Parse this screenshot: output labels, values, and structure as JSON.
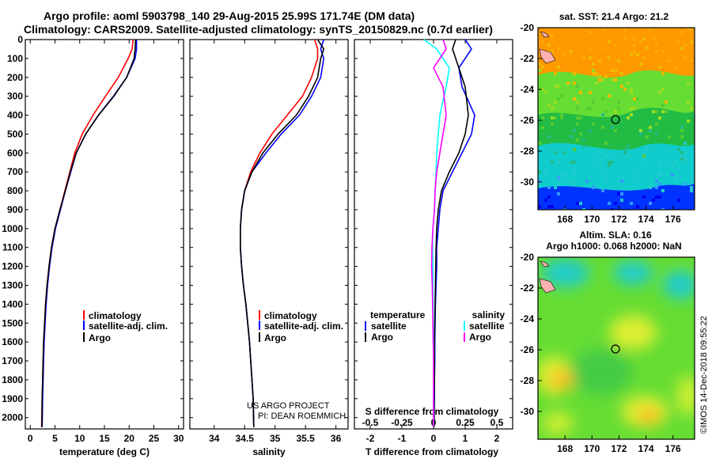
{
  "header": {
    "line1": "Argo profile: aoml 5903798_140 29-Aug-2015 25.99S 171.74E (DM data)",
    "line2": "Climatology: CARS2009. Satellite-adjusted climatology: synTS_20150829.nc (0.7d earlier)"
  },
  "credits": {
    "project": "US ARGO PROJECT",
    "pi": "PI: DEAN ROEMMICH",
    "imos": "©IMOS 14-Dec-2018 09:55:22"
  },
  "colors": {
    "climatology": "#ff0000",
    "satellite": "#0000ff",
    "argo": "#000000",
    "sat_salinity": "#00ffff",
    "argo_salinity": "#ff00ff",
    "land": "#ffb0b0"
  },
  "chart_data": [
    {
      "type": "line",
      "id": "temperature",
      "xlabel": "temperature (deg C)",
      "xlim": [
        -1,
        31
      ],
      "ylim": [
        2060,
        0
      ],
      "xticks": [
        0,
        5,
        10,
        15,
        20,
        25,
        30
      ],
      "yticks": [
        0,
        100,
        200,
        300,
        400,
        500,
        600,
        700,
        800,
        900,
        1000,
        1100,
        1200,
        1300,
        1400,
        1500,
        1600,
        1700,
        1800,
        1900,
        2000
      ],
      "legend": [
        "climatology",
        "satellite-adj. clim.",
        "Argo"
      ],
      "series": [
        {
          "name": "climatology",
          "color": "#ff0000",
          "x": [
            20.8,
            20.6,
            19.8,
            17.8,
            15.2,
            12.7,
            10.5,
            9.0,
            8.0,
            7.0,
            6.0,
            5.0,
            4.3,
            3.8,
            3.4,
            3.1,
            2.9,
            2.7,
            2.6,
            2.5,
            2.4,
            2.3
          ],
          "y": [
            0,
            50,
            100,
            200,
            300,
            400,
            500,
            600,
            700,
            800,
            900,
            1000,
            1100,
            1200,
            1300,
            1400,
            1500,
            1600,
            1700,
            1800,
            1900,
            2050
          ]
        },
        {
          "name": "satellite-adj. clim.",
          "color": "#0000ff",
          "x": [
            21.5,
            21.5,
            21.2,
            19.5,
            16.8,
            13.8,
            11.2,
            9.3,
            8.2,
            7.1,
            6.1,
            5.1,
            4.4,
            3.9,
            3.5,
            3.2,
            3.0,
            2.8,
            2.7,
            2.6,
            2.5,
            2.4
          ],
          "y": [
            0,
            50,
            100,
            200,
            300,
            400,
            500,
            600,
            700,
            800,
            900,
            1000,
            1100,
            1200,
            1300,
            1400,
            1500,
            1600,
            1700,
            1800,
            1900,
            2050
          ]
        },
        {
          "name": "Argo",
          "color": "#000000",
          "x": [
            21.3,
            21.2,
            21.0,
            19.5,
            16.9,
            13.8,
            11.2,
            9.3,
            8.1,
            7.1,
            6.0,
            5.0,
            4.3,
            3.8,
            3.4,
            3.1,
            2.9,
            2.7,
            2.6,
            2.5,
            2.4,
            2.35
          ],
          "y": [
            0,
            50,
            100,
            200,
            300,
            400,
            500,
            600,
            700,
            800,
            900,
            1000,
            1100,
            1200,
            1300,
            1400,
            1500,
            1600,
            1700,
            1800,
            1900,
            2050
          ]
        }
      ]
    },
    {
      "type": "line",
      "id": "salinity",
      "xlabel": "salinity",
      "xlim": [
        33.6,
        36.2
      ],
      "ylim": [
        2060,
        0
      ],
      "xticks": [
        34,
        34.5,
        35,
        35.5,
        36
      ],
      "legend": [
        "climatology",
        "satellite-adj. clim.",
        "Argo"
      ],
      "series": [
        {
          "name": "climatology",
          "color": "#ff0000",
          "x": [
            35.65,
            35.7,
            35.7,
            35.6,
            35.45,
            35.2,
            34.95,
            34.75,
            34.6,
            34.5,
            34.45,
            34.43,
            34.43,
            34.45,
            34.48,
            34.52,
            34.55,
            34.58,
            34.6,
            34.62,
            34.64,
            34.65
          ],
          "y": [
            0,
            50,
            100,
            200,
            300,
            400,
            500,
            600,
            700,
            800,
            900,
            1000,
            1100,
            1200,
            1300,
            1400,
            1500,
            1600,
            1700,
            1800,
            1900,
            2050
          ]
        },
        {
          "name": "satellite-adj. clim.",
          "color": "#0000ff",
          "x": [
            35.8,
            35.75,
            35.8,
            35.75,
            35.6,
            35.4,
            35.1,
            34.85,
            34.62,
            34.5,
            34.45,
            34.43,
            34.43,
            34.45,
            34.48,
            34.52,
            34.55,
            34.58,
            34.6,
            34.62,
            34.64,
            34.65
          ],
          "y": [
            0,
            50,
            100,
            200,
            300,
            400,
            500,
            600,
            700,
            800,
            900,
            1000,
            1100,
            1200,
            1300,
            1400,
            1500,
            1600,
            1700,
            1800,
            1900,
            2050
          ]
        },
        {
          "name": "Argo",
          "color": "#000000",
          "x": [
            35.7,
            35.8,
            35.75,
            35.7,
            35.55,
            35.35,
            35.05,
            34.8,
            34.62,
            34.5,
            34.45,
            34.43,
            34.43,
            34.45,
            34.48,
            34.52,
            34.55,
            34.58,
            34.6,
            34.62,
            34.64,
            34.65
          ],
          "y": [
            0,
            50,
            100,
            200,
            300,
            400,
            500,
            600,
            700,
            800,
            900,
            1000,
            1100,
            1200,
            1300,
            1400,
            1500,
            1600,
            1700,
            1800,
            1900,
            2050
          ]
        }
      ]
    },
    {
      "type": "line",
      "id": "difference",
      "xlabel": "T difference from climatology",
      "xlabel2": "S difference from climatology",
      "xlim": [
        -2.5,
        2.5
      ],
      "ylim": [
        2060,
        0
      ],
      "xticks": [
        -2,
        -1,
        0,
        1,
        2
      ],
      "xticks2": [
        "-0.5",
        "-0.25",
        "0",
        "0.25",
        "0.5"
      ],
      "legend_left_title": "temperature",
      "legend_right_title": "salinity",
      "legend_left": [
        "satellite",
        "Argo"
      ],
      "legend_right": [
        "satellite",
        "Argo"
      ],
      "series": [
        {
          "name": "T satellite",
          "color": "#0000ff",
          "x": [
            1.0,
            1.2,
            0.8,
            0.9,
            1.3,
            1.2,
            0.9,
            0.6,
            0.3,
            0.2,
            0.15,
            0.1,
            0.1,
            0.08,
            0.06,
            0.05,
            0.04,
            0.04,
            0.03,
            0.03,
            0.02,
            0.02
          ],
          "y": [
            0,
            50,
            150,
            250,
            400,
            500,
            600,
            700,
            800,
            900,
            1000,
            1100,
            1200,
            1300,
            1400,
            1500,
            1600,
            1700,
            1800,
            1900,
            2000,
            2050
          ]
        },
        {
          "name": "T Argo",
          "color": "#000000",
          "x": [
            0.7,
            0.6,
            0.8,
            1.0,
            1.1,
            1.0,
            0.8,
            0.5,
            0.25,
            0.15,
            0.1,
            0.08,
            0.07,
            0.06,
            0.05,
            0.04,
            0.03,
            0.03,
            0.03,
            0.02,
            0.02,
            0.02
          ],
          "y": [
            0,
            50,
            150,
            250,
            400,
            500,
            600,
            700,
            800,
            900,
            1000,
            1100,
            1200,
            1300,
            1400,
            1500,
            1600,
            1700,
            1800,
            1900,
            2000,
            2050
          ]
        },
        {
          "name": "S satellite",
          "color": "#00ffff",
          "x": [
            -0.3,
            0.1,
            0.5,
            0.4,
            0.2,
            0.15,
            0.1,
            0.08,
            0.05,
            0.03,
            -0.02,
            -0.03,
            -0.02,
            -0.02,
            -0.01,
            -0.01,
            0.0,
            0.0,
            0.0,
            0.0,
            0.0,
            0.0
          ],
          "y": [
            0,
            50,
            150,
            250,
            400,
            500,
            600,
            700,
            800,
            900,
            1000,
            1100,
            1200,
            1300,
            1400,
            1500,
            1600,
            1700,
            1800,
            1900,
            2000,
            2050
          ]
        },
        {
          "name": "S Argo",
          "color": "#ff00ff",
          "x": [
            0.3,
            0.4,
            0.0,
            0.3,
            0.4,
            0.3,
            0.2,
            0.1,
            0.05,
            0.03,
            -0.02,
            -0.05,
            -0.06,
            -0.04,
            -0.03,
            -0.02,
            -0.01,
            0.0,
            0.0,
            0.0,
            0.0,
            0.0
          ],
          "y": [
            0,
            50,
            150,
            250,
            400,
            500,
            600,
            700,
            800,
            900,
            1000,
            1100,
            1200,
            1300,
            1400,
            1500,
            1600,
            1700,
            1800,
            1900,
            2000,
            2050
          ]
        }
      ]
    },
    {
      "type": "heatmap",
      "id": "sst_map",
      "title": "sat. SST: 21.4 Argo: 21.2",
      "xlim": [
        166,
        177.6
      ],
      "ylim": [
        -31.8,
        -20
      ],
      "xticks": [
        168,
        170,
        172,
        174,
        176
      ],
      "yticks": [
        -20,
        -22,
        -24,
        -26,
        -28,
        -30
      ],
      "marker": [
        171.74,
        -25.99
      ]
    },
    {
      "type": "heatmap",
      "id": "sla_map",
      "title": "Altim. SLA: 0.16",
      "subtitle": "Argo h1000: 0.068 h2000: NaN",
      "xlim": [
        166,
        177.6
      ],
      "ylim": [
        -31.8,
        -20
      ],
      "xticks": [
        168,
        170,
        172,
        174,
        176
      ],
      "yticks": [
        -20,
        -22,
        -24,
        -26,
        -28,
        -30
      ],
      "marker": [
        171.74,
        -25.99
      ]
    }
  ]
}
